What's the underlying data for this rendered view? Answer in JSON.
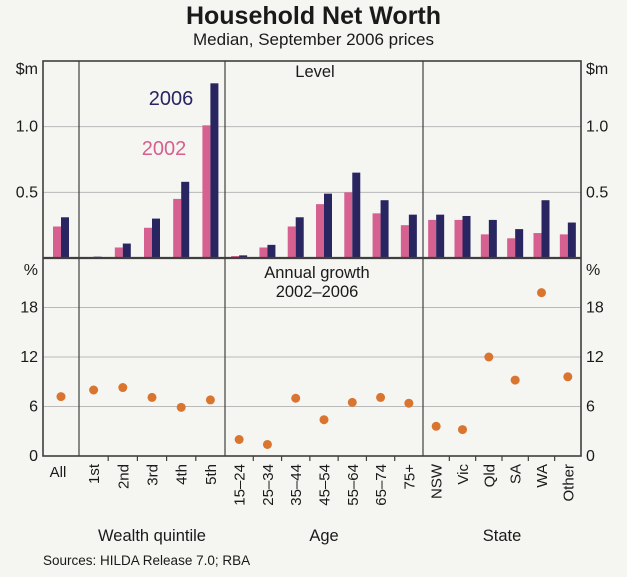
{
  "header": {
    "title": "Household Net Worth",
    "subtitle": "Median, September 2006 prices"
  },
  "footer": {
    "sources": "Sources: HILDA Release 7.0; RBA"
  },
  "colors": {
    "background": "#f5f5f2",
    "series_2002": "#d6608f",
    "series_2006": "#282560",
    "growth_dot": "#d9752e",
    "gridline": "#b9b9b9",
    "axis": "#3f3f3f",
    "text": "#1a1a1a"
  },
  "axis_groups": [
    {
      "label": "",
      "categories": [
        "All"
      ]
    },
    {
      "label": "Wealth quintile",
      "categories": [
        "1st",
        "2nd",
        "3rd",
        "4th",
        "5th"
      ]
    },
    {
      "label": "Age",
      "categories": [
        "15–24",
        "25–34",
        "35–44",
        "45–54",
        "55–64",
        "65–74",
        "75+"
      ]
    },
    {
      "label": "State",
      "categories": [
        "NSW",
        "Vic",
        "Qld",
        "SA",
        "WA",
        "Other"
      ]
    }
  ],
  "chart_data": [
    {
      "type": "bar",
      "title": "Level",
      "unit_label": "$m",
      "ylim": [
        0,
        1.5
      ],
      "yticks": [
        {
          "v": 0.5,
          "label": "0.5"
        },
        {
          "v": 1.0,
          "label": "1.0"
        }
      ],
      "legend_position": "upper-left-of-quintile-panel",
      "categories": [
        "All",
        "1st",
        "2nd",
        "3rd",
        "4th",
        "5th",
        "15–24",
        "25–34",
        "35–44",
        "45–54",
        "55–64",
        "65–74",
        "75+",
        "NSW",
        "Vic",
        "Qld",
        "SA",
        "WA",
        "Other"
      ],
      "series": [
        {
          "name": "2002",
          "values": [
            0.24,
            0.005,
            0.08,
            0.23,
            0.45,
            1.01,
            0.015,
            0.08,
            0.24,
            0.41,
            0.5,
            0.34,
            0.25,
            0.29,
            0.29,
            0.18,
            0.15,
            0.19,
            0.18
          ]
        },
        {
          "name": "2006",
          "values": [
            0.31,
            0.01,
            0.11,
            0.3,
            0.58,
            1.33,
            0.02,
            0.1,
            0.31,
            0.49,
            0.65,
            0.44,
            0.33,
            0.33,
            0.32,
            0.29,
            0.22,
            0.44,
            0.27
          ]
        }
      ]
    },
    {
      "type": "scatter",
      "title": "Annual growth",
      "subtitle": "2002–2006",
      "unit_label": "%",
      "ylim": [
        0,
        24
      ],
      "yticks": [
        {
          "v": 0,
          "label": "0"
        },
        {
          "v": 6,
          "label": "6"
        },
        {
          "v": 12,
          "label": "12"
        },
        {
          "v": 18,
          "label": "18"
        }
      ],
      "categories": [
        "All",
        "1st",
        "2nd",
        "3rd",
        "4th",
        "5th",
        "15–24",
        "25–34",
        "35–44",
        "45–54",
        "55–64",
        "65–74",
        "75+",
        "NSW",
        "Vic",
        "Qld",
        "SA",
        "WA",
        "Other"
      ],
      "values": [
        7.2,
        8.0,
        8.3,
        7.1,
        5.9,
        6.8,
        2.0,
        1.4,
        7.0,
        4.4,
        6.5,
        7.1,
        6.4,
        3.6,
        3.2,
        12.0,
        9.2,
        19.8,
        9.6
      ]
    }
  ]
}
